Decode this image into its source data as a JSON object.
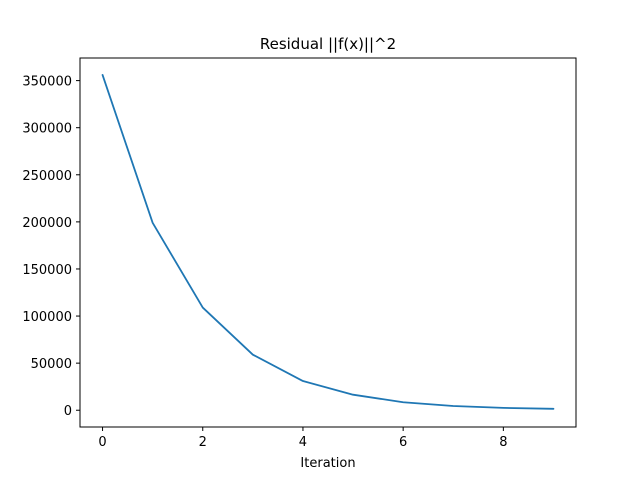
{
  "chart_data": {
    "type": "line",
    "title": "Residual ||f(x)||^2",
    "xlabel": "Iteration",
    "ylabel": "",
    "xlim": [
      -0.45,
      9.45
    ],
    "ylim": [
      -17800,
      374000
    ],
    "xticks": [
      0,
      2,
      4,
      6,
      8
    ],
    "yticks": [
      0,
      50000,
      100000,
      150000,
      200000,
      250000,
      300000,
      350000
    ],
    "grid": false,
    "legend": "none",
    "series": [
      {
        "color": "#1f77b4",
        "x": [
          0,
          1,
          2,
          3,
          4,
          5,
          6,
          7,
          8,
          9
        ],
        "y": [
          356000,
          199000,
          109000,
          59000,
          31000,
          16500,
          8500,
          4500,
          2500,
          1500
        ]
      }
    ]
  }
}
